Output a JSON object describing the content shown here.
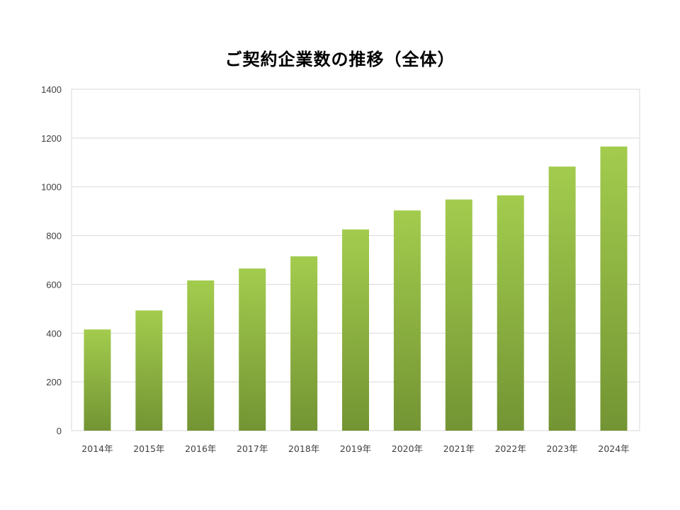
{
  "chart_data": {
    "type": "bar",
    "title": "ご契約企業数の推移（全体）",
    "xlabel": "",
    "ylabel": "",
    "categories": [
      "2014年",
      "2015年",
      "2016年",
      "2017年",
      "2018年",
      "2019年",
      "2020年",
      "2021年",
      "2022年",
      "2023年",
      "2024年"
    ],
    "values": [
      415,
      493,
      616,
      665,
      715,
      825,
      903,
      948,
      965,
      1083,
      1165
    ],
    "ylim": [
      0,
      1400
    ],
    "yticks": [
      0,
      200,
      400,
      600,
      800,
      1000,
      1200,
      1400
    ],
    "grid": true,
    "legend": "none",
    "colors": {
      "bar_top": "#a3cc4e",
      "bar_bottom": "#739433",
      "grid": "#d9d9d9",
      "axis_text": "#404040"
    }
  }
}
